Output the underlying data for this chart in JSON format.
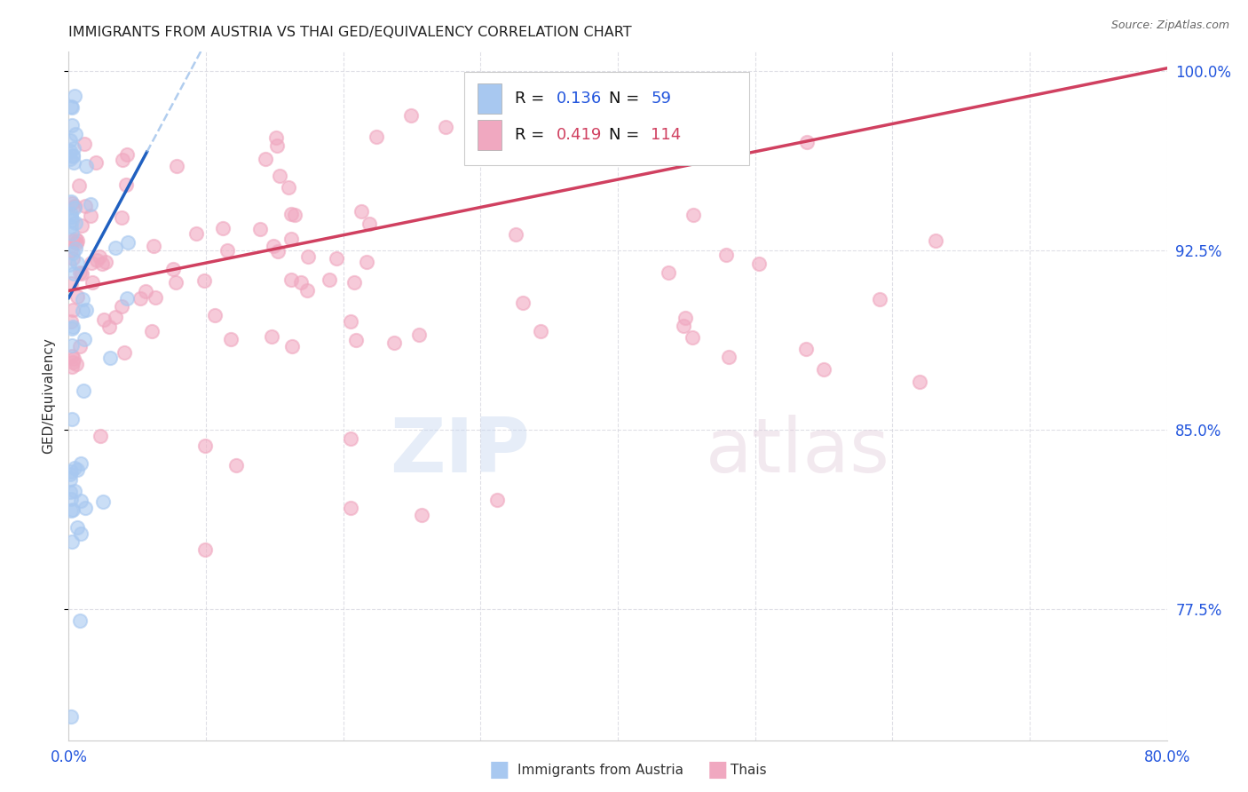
{
  "title": "IMMIGRANTS FROM AUSTRIA VS THAI GED/EQUIVALENCY CORRELATION CHART",
  "source": "Source: ZipAtlas.com",
  "ylabel": "GED/Equivalency",
  "xlim": [
    0.0,
    0.8
  ],
  "ylim": [
    0.72,
    1.008
  ],
  "xticks": [
    0.0,
    0.1,
    0.2,
    0.3,
    0.4,
    0.5,
    0.6,
    0.7,
    0.8
  ],
  "xticklabels": [
    "0.0%",
    "",
    "",
    "",
    "",
    "",
    "",
    "",
    "80.0%"
  ],
  "yticks": [
    0.775,
    0.85,
    0.925,
    1.0
  ],
  "yticklabels": [
    "77.5%",
    "85.0%",
    "92.5%",
    "100.0%"
  ],
  "austria_R": 0.136,
  "austria_N": 59,
  "thai_R": 0.419,
  "thai_N": 114,
  "austria_color": "#a8c8f0",
  "thai_color": "#f0a8c0",
  "austria_line_color": "#2060c0",
  "austria_dash_color": "#90b8e8",
  "thai_line_color": "#d04060",
  "background_color": "#ffffff",
  "grid_color": "#d8d8e0",
  "title_color": "#222222",
  "tick_color": "#2255dd",
  "ylabel_color": "#333333",
  "source_color": "#666666"
}
